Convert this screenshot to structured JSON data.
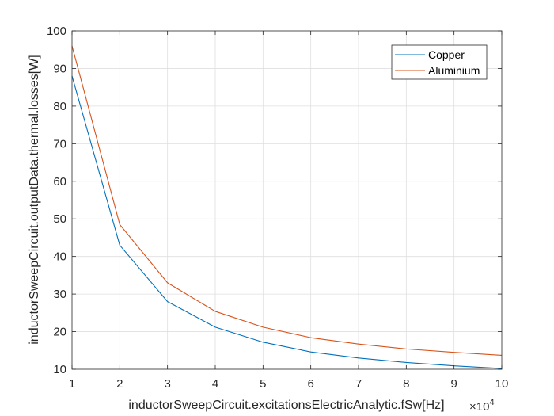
{
  "chart_data": {
    "type": "line",
    "x": [
      1,
      2,
      3,
      4,
      5,
      6,
      7,
      8,
      9,
      10
    ],
    "x_multiplier_label": {
      "base": "×10",
      "exponent": "4"
    },
    "series": [
      {
        "name": "Copper",
        "color": "#0072BD",
        "values": [
          88,
          43,
          28,
          21.2,
          17.2,
          14.6,
          13,
          11.8,
          10.9,
          10.2
        ]
      },
      {
        "name": "Aluminium",
        "color": "#D95319",
        "values": [
          96,
          48.5,
          33,
          25.4,
          21.2,
          18.4,
          16.7,
          15.4,
          14.5,
          13.7
        ]
      }
    ],
    "xlabel": "inductorSweepCircuit.excitationsElectricAnalytic.fSw[Hz]",
    "ylabel": "inductorSweepCircuit.outputData.thermal.losses[W]",
    "xlim": [
      1,
      10
    ],
    "ylim": [
      10,
      100
    ],
    "xticks": [
      1,
      2,
      3,
      4,
      5,
      6,
      7,
      8,
      9,
      10
    ],
    "yticks": [
      10,
      20,
      30,
      40,
      50,
      60,
      70,
      80,
      90,
      100
    ],
    "grid": true,
    "legend_position": "top-right"
  }
}
